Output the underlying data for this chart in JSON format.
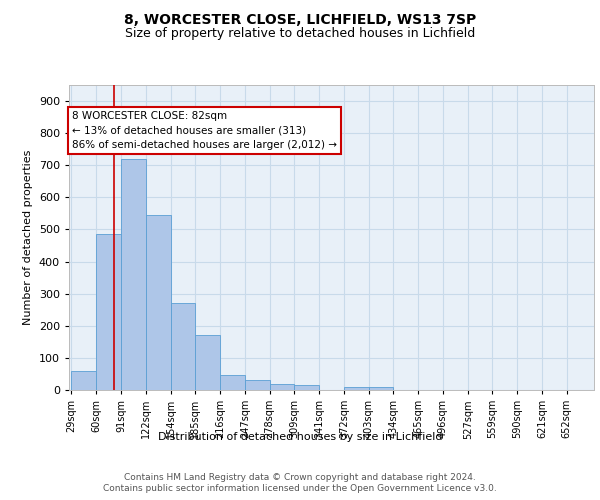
{
  "title1": "8, WORCESTER CLOSE, LICHFIELD, WS13 7SP",
  "title2": "Size of property relative to detached houses in Lichfield",
  "xlabel": "Distribution of detached houses by size in Lichfield",
  "ylabel": "Number of detached properties",
  "categories": [
    "29sqm",
    "60sqm",
    "91sqm",
    "122sqm",
    "154sqm",
    "185sqm",
    "216sqm",
    "247sqm",
    "278sqm",
    "309sqm",
    "341sqm",
    "372sqm",
    "403sqm",
    "434sqm",
    "465sqm",
    "496sqm",
    "527sqm",
    "559sqm",
    "590sqm",
    "621sqm",
    "652sqm"
  ],
  "values": [
    60,
    485,
    720,
    545,
    272,
    172,
    47,
    32,
    18,
    15,
    0,
    8,
    8,
    0,
    0,
    0,
    0,
    0,
    0,
    0,
    0
  ],
  "bar_color": "#aec6e8",
  "bar_edge_color": "#5a9fd4",
  "property_line_sqm": 82,
  "annotation_label": "8 WORCESTER CLOSE: 82sqm",
  "annotation_line1": "← 13% of detached houses are smaller (313)",
  "annotation_line2": "86% of semi-detached houses are larger (2,012) →",
  "annotation_box_color": "#ffffff",
  "annotation_box_edge_color": "#cc0000",
  "line_color": "#cc0000",
  "ylim": [
    0,
    950
  ],
  "yticks": [
    0,
    100,
    200,
    300,
    400,
    500,
    600,
    700,
    800,
    900
  ],
  "grid_color": "#c8daea",
  "bg_color": "#e8f0f8",
  "footer_line1": "Contains HM Land Registry data © Crown copyright and database right 2024.",
  "footer_line2": "Contains public sector information licensed under the Open Government Licence v3.0.",
  "bin_width": 31
}
